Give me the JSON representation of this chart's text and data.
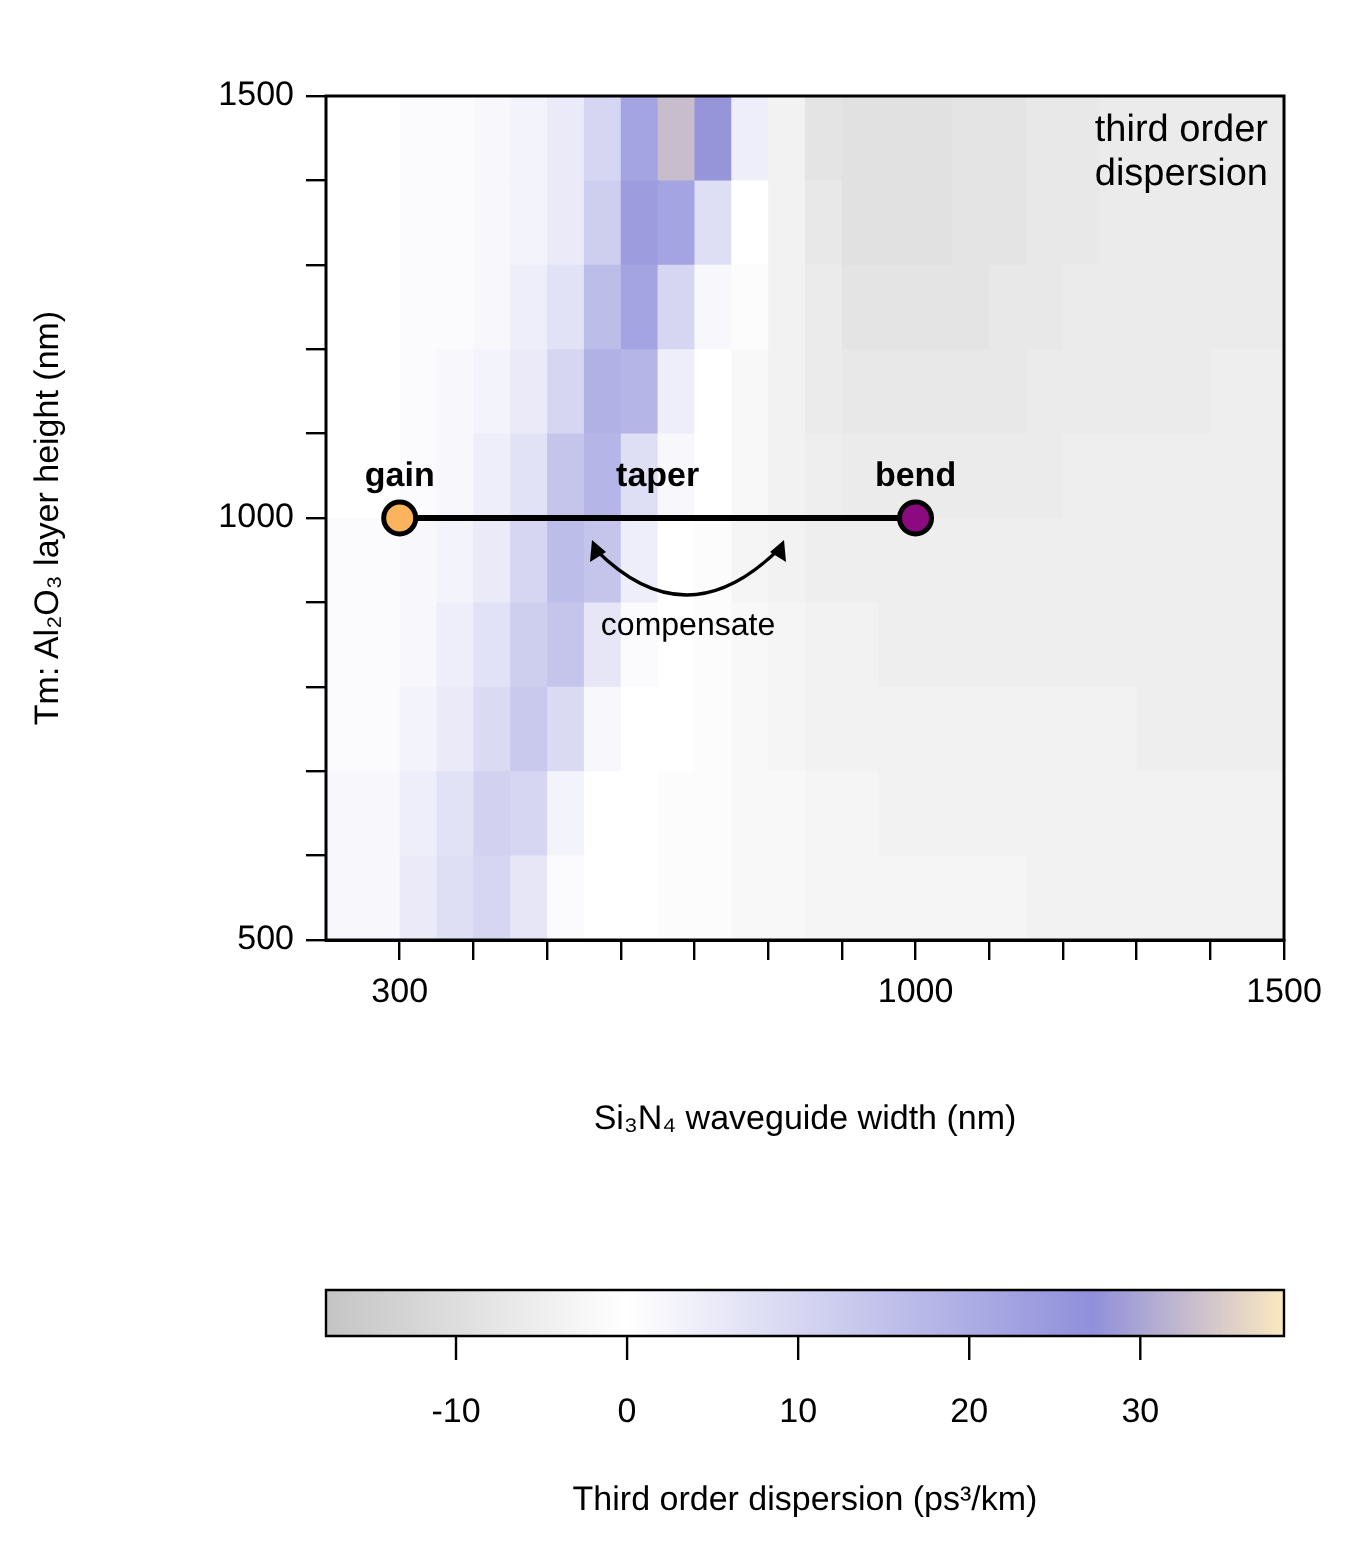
{
  "chart_data": {
    "type": "heatmap",
    "xlabel": "Si₃N₄ waveguide width (nm)",
    "ylabel": "Tm: Al₂O₃ layer height (nm)",
    "clabel": "Third order dispersion (ps³/km)",
    "x": [
      225,
      275,
      325,
      375,
      425,
      475,
      525,
      575,
      625,
      675,
      725,
      775,
      825,
      875,
      925,
      975,
      1025,
      1075,
      1125,
      1175,
      1225,
      1275,
      1325,
      1375,
      1425,
      1475
    ],
    "y": [
      1450,
      1350,
      1250,
      1150,
      1050,
      950,
      850,
      750,
      650,
      550
    ],
    "cells": [
      [
        0,
        0,
        1,
        1,
        2,
        3,
        5,
        10,
        22,
        33,
        28,
        4,
        -4,
        -8,
        -9,
        -9,
        -9,
        -8,
        -8,
        -7,
        -7,
        -6,
        -6,
        -6,
        -6,
        -6
      ],
      [
        0,
        0,
        1,
        1,
        2,
        3,
        5,
        12,
        24,
        22,
        8,
        0,
        -4,
        -7,
        -9,
        -9,
        -9,
        -8,
        -8,
        -7,
        -7,
        -6,
        -6,
        -6,
        -6,
        -6
      ],
      [
        0,
        0,
        1,
        1,
        2,
        4,
        7,
        16,
        22,
        10,
        2,
        -1,
        -4,
        -6,
        -8,
        -8,
        -8,
        -8,
        -7,
        -7,
        -6,
        -6,
        -6,
        -6,
        -6,
        -6
      ],
      [
        0,
        0,
        1,
        2,
        3,
        5,
        10,
        19,
        18,
        4,
        0,
        -2,
        -4,
        -6,
        -7,
        -7,
        -7,
        -7,
        -7,
        -6,
        -6,
        -6,
        -6,
        -6,
        -5,
        -5
      ],
      [
        0,
        0,
        1,
        2,
        4,
        7,
        14,
        18,
        8,
        2,
        0,
        -2,
        -4,
        -5,
        -6,
        -6,
        -6,
        -6,
        -6,
        -6,
        -5,
        -5,
        -5,
        -5,
        -5,
        -5
      ],
      [
        1,
        1,
        2,
        3,
        5,
        10,
        16,
        14,
        4,
        0,
        -1,
        -3,
        -4,
        -5,
        -5,
        -5,
        -5,
        -5,
        -5,
        -5,
        -5,
        -5,
        -5,
        -5,
        -5,
        -5
      ],
      [
        1,
        1,
        2,
        4,
        7,
        12,
        14,
        6,
        1,
        0,
        -1,
        -2,
        -3,
        -4,
        -4,
        -5,
        -5,
        -5,
        -5,
        -5,
        -5,
        -5,
        -5,
        -5,
        -5,
        -5
      ],
      [
        1,
        1,
        3,
        5,
        9,
        13,
        9,
        2,
        0,
        0,
        -1,
        -2,
        -3,
        -4,
        -4,
        -4,
        -4,
        -4,
        -4,
        -4,
        -4,
        -4,
        -5,
        -5,
        -5,
        -5
      ],
      [
        2,
        2,
        4,
        7,
        11,
        10,
        3,
        0,
        0,
        -1,
        -1,
        -2,
        -2,
        -3,
        -3,
        -4,
        -4,
        -4,
        -4,
        -4,
        -4,
        -4,
        -4,
        -4,
        -4,
        -4
      ],
      [
        2,
        2,
        5,
        8,
        10,
        6,
        1,
        0,
        0,
        -1,
        -1,
        -2,
        -2,
        -3,
        -3,
        -3,
        -3,
        -3,
        -3,
        -4,
        -4,
        -4,
        -4,
        -4,
        -4,
        -4
      ]
    ],
    "clim": [
      -17.6,
      38.4
    ],
    "cticks": [
      -10,
      0,
      10,
      20,
      30
    ],
    "xlim": [
      200,
      1500
    ],
    "xticks": [
      300,
      {
        "value": 400,
        "label": null
      },
      {
        "value": 500,
        "label": null
      },
      {
        "value": 600,
        "label": null
      },
      {
        "value": 700,
        "label": null
      },
      {
        "value": 800,
        "label": null
      },
      {
        "value": 900,
        "label": null
      },
      1000,
      {
        "value": 1100,
        "label": null
      },
      {
        "value": 1200,
        "label": null
      },
      {
        "value": 1300,
        "label": null
      },
      {
        "value": 1400,
        "label": null
      },
      1500
    ],
    "ylim": [
      500,
      1500
    ],
    "yticks": [
      500,
      {
        "value": 600,
        "label": null
      },
      {
        "value": 700,
        "label": null
      },
      {
        "value": 800,
        "label": null
      },
      {
        "value": 900,
        "label": null
      },
      1000,
      {
        "value": 1100,
        "label": null
      },
      {
        "value": 1200,
        "label": null
      },
      {
        "value": 1300,
        "label": null
      },
      {
        "value": 1400,
        "label": null
      },
      1500
    ],
    "series": [
      {
        "type": "line",
        "x": [
          300,
          1000
        ],
        "values": [
          1000,
          1000
        ],
        "color": "#000000",
        "colors": [
          "#fbb45c",
          "#8c0a80"
        ]
      }
    ],
    "marker": "circle",
    "grid": false,
    "legend": false,
    "annotations": [
      "third order dispersion",
      "compensate",
      {
        "text": "gain",
        "x": 300,
        "y": 1000
      },
      {
        "text": "taper",
        "x": 650,
        "y": 1000
      },
      {
        "text": "bend",
        "x": 1000,
        "y": 1000
      }
    ]
  }
}
